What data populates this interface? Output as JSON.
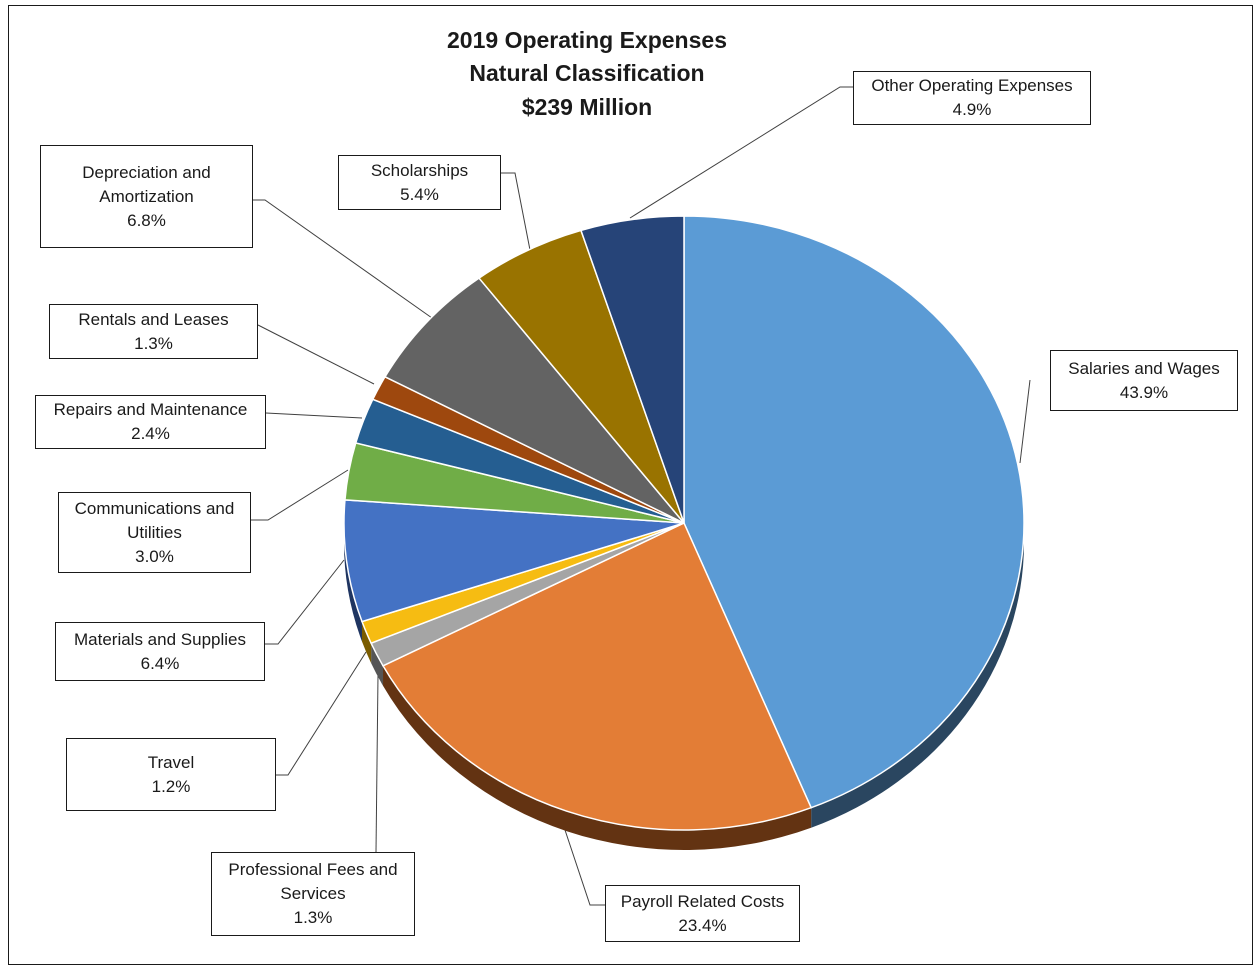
{
  "chart_data": {
    "type": "pie",
    "title": [
      "2019 Operating Expenses",
      "Natural Classification",
      "$239 Million"
    ],
    "slices": [
      {
        "label": [
          "Salaries and Wages"
        ],
        "value": 43.9,
        "display": "43.9%",
        "color": "#5B9BD5",
        "side": "#2A4660"
      },
      {
        "label": [
          "Payroll Related Costs"
        ],
        "value": 23.4,
        "display": "23.4%",
        "color": "#E37D36",
        "side": "#633312"
      },
      {
        "label": [
          "Professional Fees and",
          "Services"
        ],
        "value": 1.3,
        "display": "1.3%",
        "color": "#A5A5A5",
        "side": "#555555"
      },
      {
        "label": [
          "Travel"
        ],
        "value": 1.2,
        "display": "1.2%",
        "color": "#F6BC12",
        "side": "#7A5C00"
      },
      {
        "label": [
          "Materials and Supplies"
        ],
        "value": 6.4,
        "display": "6.4%",
        "color": "#4472C4",
        "side": "#1F3561"
      },
      {
        "label": [
          "Communications and",
          "Utilities"
        ],
        "value": 3.0,
        "display": "3.0%",
        "color": "#70AD47",
        "side": "#355425"
      },
      {
        "label": [
          "Repairs and Maintenance"
        ],
        "value": 2.4,
        "display": "2.4%",
        "color": "#255E91",
        "side": "#112C45"
      },
      {
        "label": [
          "Rentals and Leases"
        ],
        "value": 1.3,
        "display": "1.3%",
        "color": "#9E480E",
        "side": "#4A2107"
      },
      {
        "label": [
          "Depreciation and",
          "Amortization"
        ],
        "value": 6.8,
        "display": "6.8%",
        "color": "#636363",
        "side": "#303030"
      },
      {
        "label": [
          "Scholarships"
        ],
        "value": 5.4,
        "display": "5.4%",
        "color": "#997300",
        "side": "#4A3800"
      },
      {
        "label": [
          "Other Operating Expenses"
        ],
        "value": 4.9,
        "display": "4.9%",
        "color": "#264478",
        "side": "#121F38"
      }
    ]
  }
}
